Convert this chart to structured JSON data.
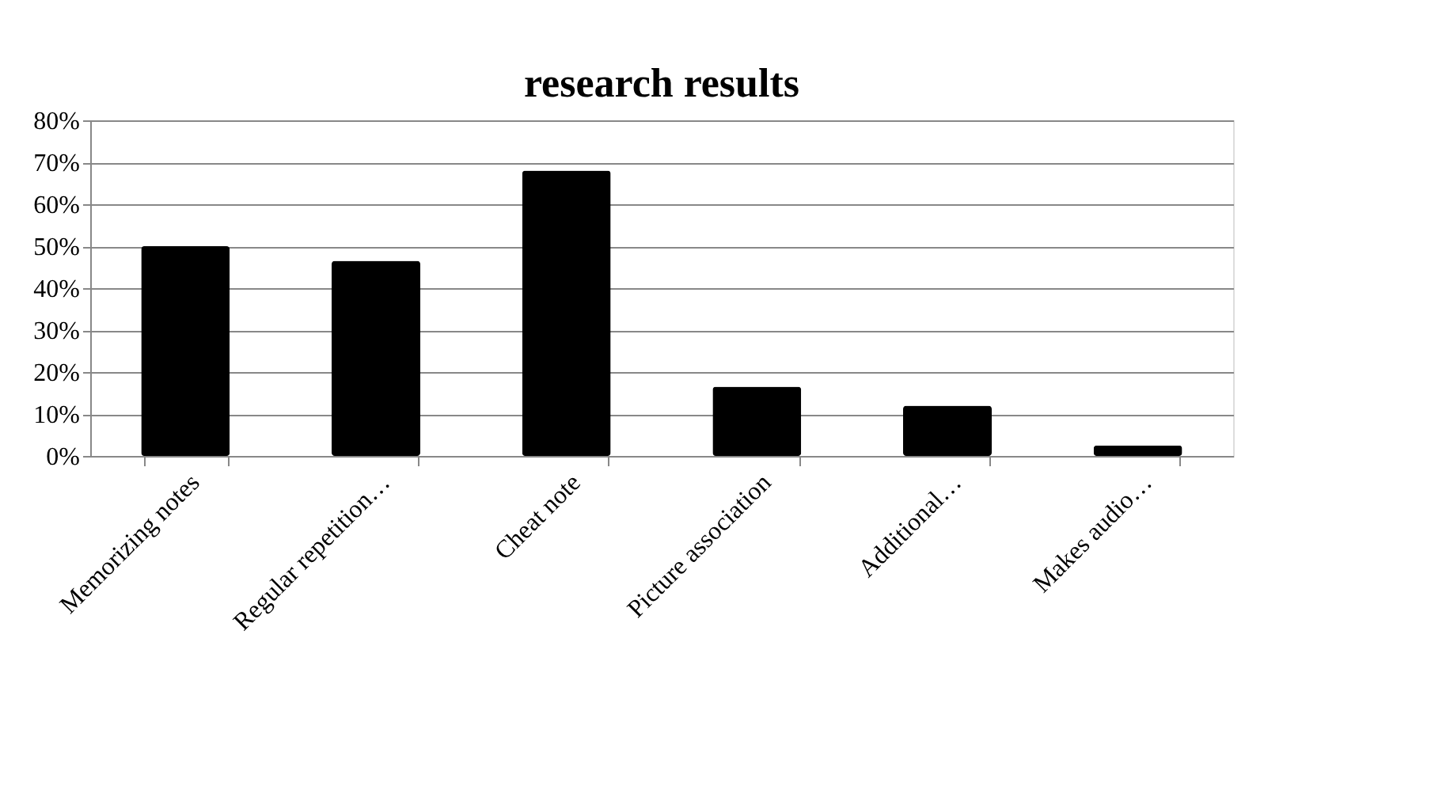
{
  "chart_data": {
    "type": "bar",
    "title": "research results",
    "categories": [
      "Memorizing notes",
      "Regular repetition…",
      "Cheat note",
      "Picture association",
      "Additional…",
      "Makes audio…"
    ],
    "values": [
      50,
      46.5,
      68,
      16.5,
      12,
      2.5
    ],
    "color": "#000000",
    "ylim": [
      0,
      80
    ],
    "yticks": [
      {
        "value": 0,
        "label": "0%"
      },
      {
        "value": 10,
        "label": "10%"
      },
      {
        "value": 20,
        "label": "20%"
      },
      {
        "value": 30,
        "label": "30%"
      },
      {
        "value": 40,
        "label": "40%"
      },
      {
        "value": 50,
        "label": "50%"
      },
      {
        "value": 60,
        "label": "60%"
      },
      {
        "value": 70,
        "label": "70%"
      },
      {
        "value": 80,
        "label": "80%"
      }
    ],
    "grid": "y"
  }
}
